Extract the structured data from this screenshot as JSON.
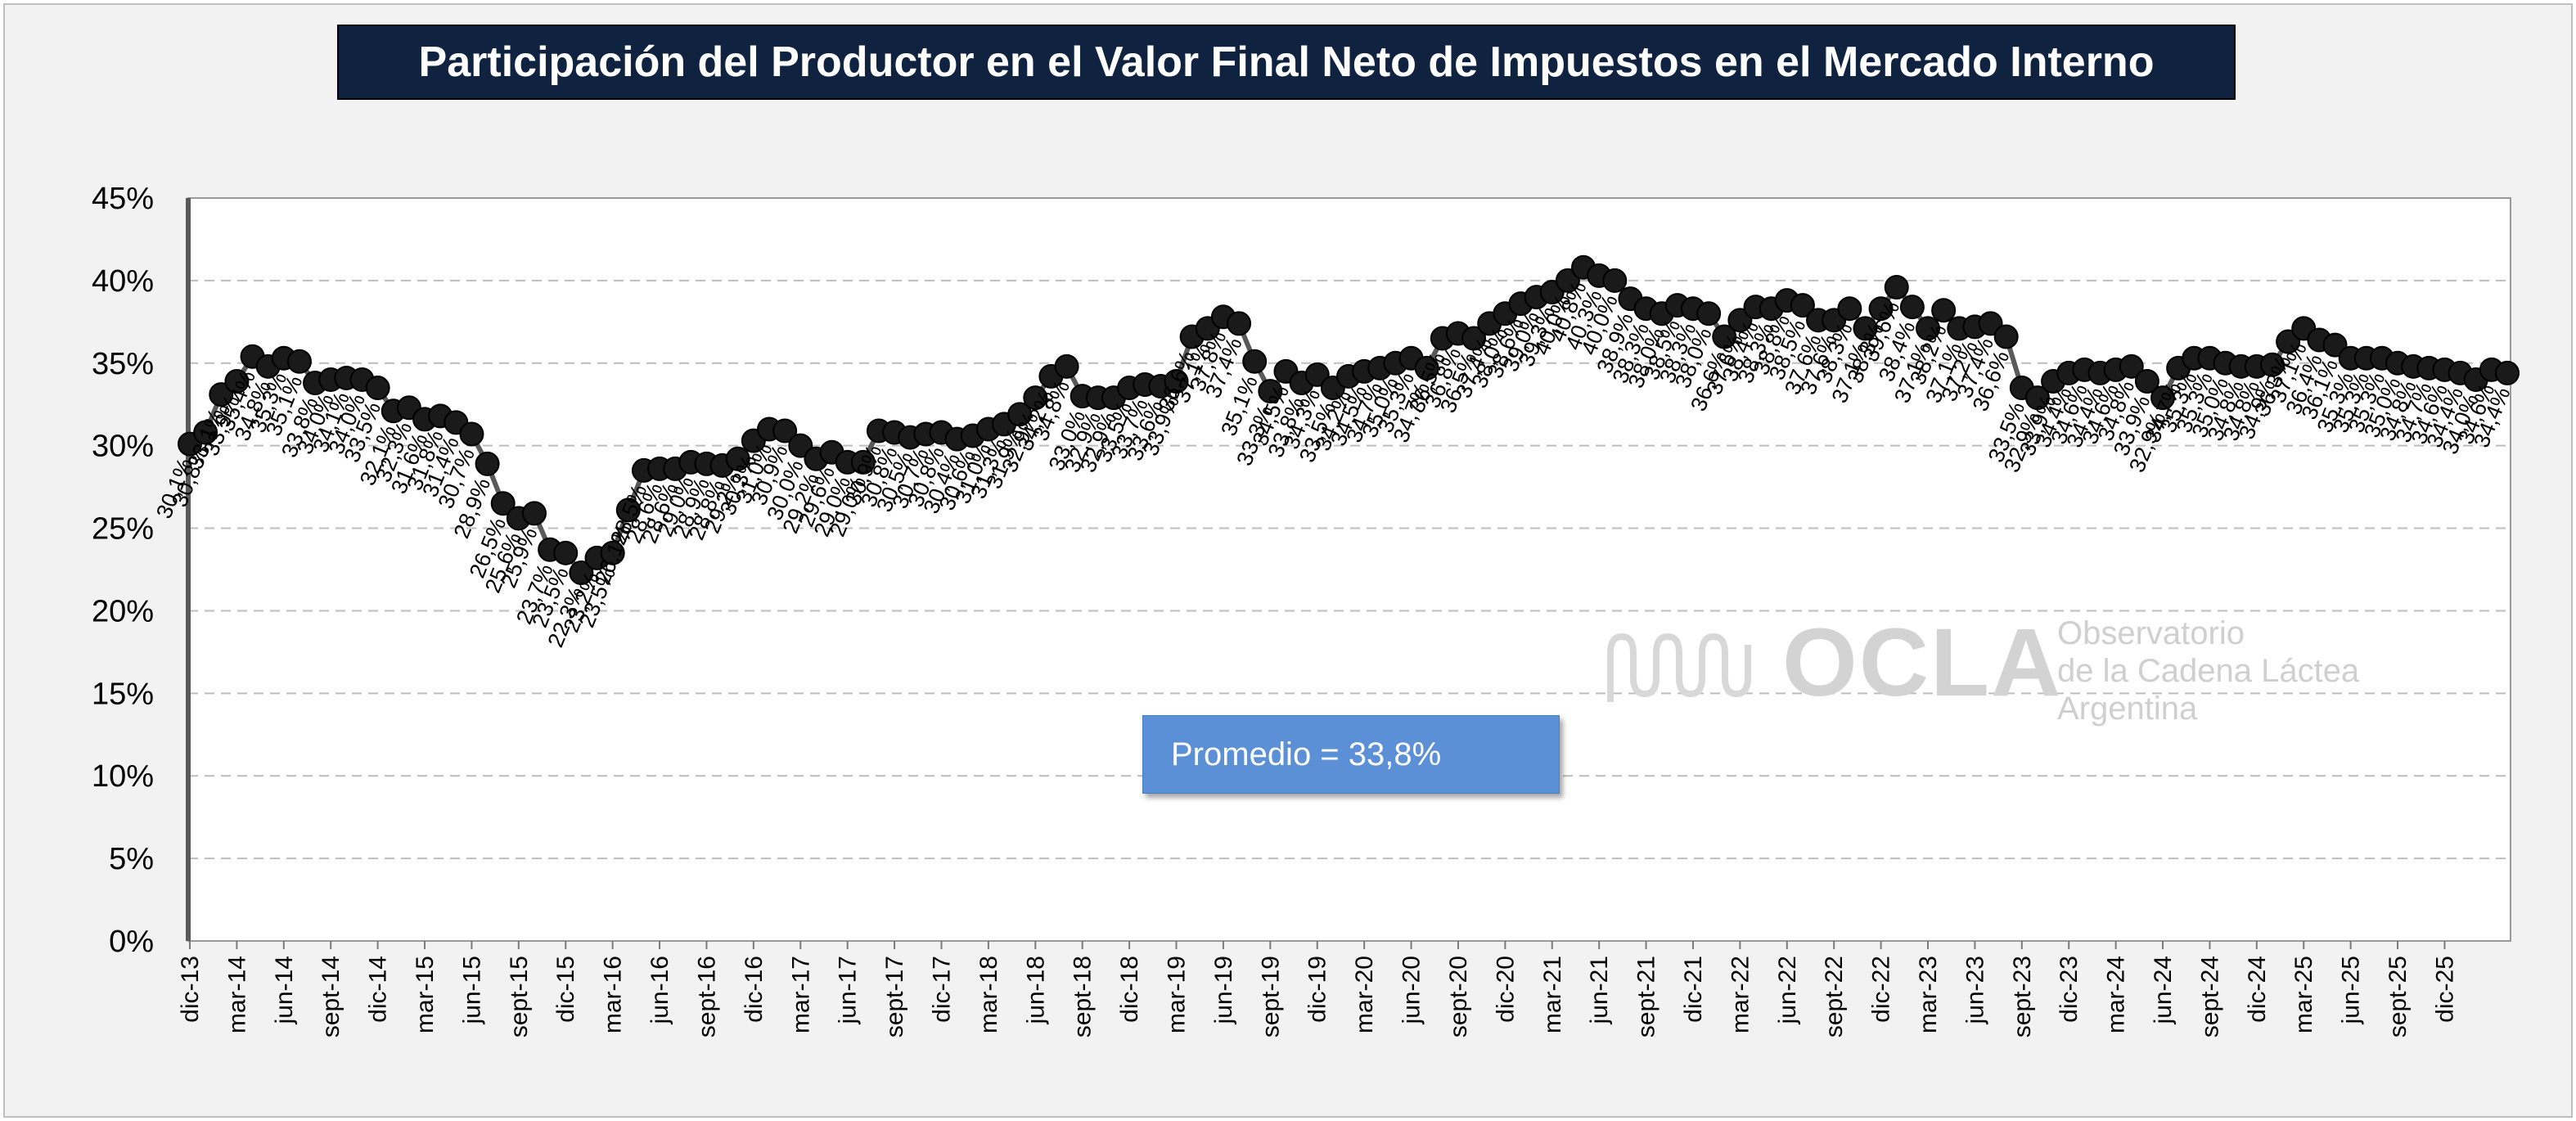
{
  "title": "Participación del Productor en el Valor Final Neto de Impuestos en el Mercado Interno",
  "average_label": "Promedio = 33,8%",
  "logo": {
    "name": "OCLA",
    "line1": "Observatorio",
    "line2": "de la Cadena Láctea",
    "line3": "Argentina"
  },
  "colors": {
    "frame_bg": "#f2f2f2",
    "plot_bg": "#ffffff",
    "title_bg": "#0f2341",
    "average_box": "#5b8fd6",
    "line": "#595959",
    "marker": "#1a1a1a"
  },
  "chart_data": {
    "type": "line",
    "title": "Participación del Productor en el Valor Final Neto de Impuestos en el Mercado Interno",
    "xlabel": "",
    "ylabel": "",
    "ylim": [
      0,
      45
    ],
    "y_ticks": [
      "0%",
      "5%",
      "10%",
      "15%",
      "20%",
      "25%",
      "30%",
      "35%",
      "40%",
      "45%"
    ],
    "grid": true,
    "legend": "none",
    "x_tick_labels": [
      "dic-13",
      "mar-14",
      "jun-14",
      "sept-14",
      "dic-14",
      "mar-15",
      "jun-15",
      "sept-15",
      "dic-15",
      "mar-16",
      "jun-16",
      "sept-16",
      "dic-16",
      "mar-17",
      "jun-17",
      "sept-17",
      "dic-17",
      "mar-18",
      "jun-18",
      "sept-18",
      "dic-18",
      "mar-19",
      "jun-19",
      "sept-19",
      "dic-19",
      "mar-20",
      "jun-20",
      "sept-20",
      "dic-20",
      "mar-21",
      "jun-21",
      "sept-21",
      "dic-21",
      "mar-22",
      "jun-22",
      "sept-22",
      "dic-22",
      "mar-23",
      "jun-23",
      "sept-23",
      "dic-23",
      "mar-24",
      "jun-24",
      "sept-24",
      "dic-24",
      "mar-25",
      "jun-25",
      "sept-25",
      "dic-25"
    ],
    "series": [
      {
        "values": [
          30.1,
          30.8,
          33.1,
          33.9,
          35.4,
          34.8,
          35.3,
          35.1,
          33.8,
          34.0,
          34.1,
          34.0,
          33.5,
          32.1,
          32.3,
          31.6,
          31.8,
          31.4,
          30.7,
          28.9,
          26.5,
          25.6,
          25.9,
          23.7,
          23.5,
          22.3,
          23.2,
          23.5,
          26.1,
          28.5,
          28.6,
          28.6,
          29.0,
          28.9,
          28.8,
          29.2,
          30.3,
          31.0,
          30.9,
          30.0,
          29.2,
          29.6,
          29.0,
          29.0,
          30.9,
          30.8,
          30.5,
          30.7,
          30.8,
          30.4,
          30.6,
          31.0,
          31.3,
          31.9,
          32.9,
          34.2,
          34.8,
          33.0,
          32.9,
          32.9,
          33.5,
          33.7,
          33.6,
          33.9,
          36.6,
          37.1,
          37.8,
          37.4,
          35.1,
          33.3,
          34.5,
          33.8,
          34.3,
          33.5,
          34.2,
          34.5,
          34.7,
          35.0,
          35.3,
          34.7,
          36.5,
          36.8,
          36.5,
          37.4,
          38.0,
          38.6,
          39.0,
          39.3,
          40.0,
          40.8,
          40.3,
          40.0,
          38.9,
          38.3,
          38.0,
          38.5,
          38.3,
          38.0,
          36.6,
          37.6,
          38.4,
          38.3,
          38.8,
          38.5,
          37.6,
          37.6,
          38.3,
          37.1,
          38.3,
          39.6,
          38.4,
          37.1,
          38.2,
          37.1,
          37.2,
          37.4,
          36.6,
          33.5,
          32.9,
          33.9,
          34.4,
          34.6,
          34.4,
          34.6,
          34.8,
          33.9,
          32.9,
          34.7,
          35.3,
          35.3,
          35.0,
          34.8,
          34.8,
          34.9,
          36.3,
          37.1,
          36.4,
          36.1,
          35.3,
          35.3,
          35.3,
          35.0,
          34.8,
          34.7,
          34.6,
          34.4,
          34.0,
          34.6,
          34.4
        ],
        "labels": [
          "30,1%",
          "30,8%",
          "33,1%",
          "33,9%",
          "35,4%",
          "34,8%",
          "35,3%",
          "35,1%",
          "33,8%",
          "34,0%",
          "34,1%",
          "34,0%",
          "33,5%",
          "32,1%",
          "32,3%",
          "31,6%",
          "31,8%",
          "31,4%",
          "30,7%",
          "28,9%",
          "26,5%",
          "25,6%",
          "25,9%",
          "23,7%",
          "23,5%",
          "22,3%",
          "23,2%",
          "23,5%",
          "26,1%",
          "28,5%",
          "28,6%",
          "28,6%",
          "29,0%",
          "28,9%",
          "28,8%",
          "29,2%",
          "30,3%",
          "31,0%",
          "30,9%",
          "30,0%",
          "29,2%",
          "29,6%",
          "29,0%",
          "29,0%",
          "30,9%",
          "30,8%",
          "30,5%",
          "30,7%",
          "30,8%",
          "30,4%",
          "30,6%",
          "31,0%",
          "31,3%",
          "31,9%",
          "32,9%",
          "34,2%",
          "34,8%",
          "33,0%",
          "32,9%",
          "32,9%",
          "33,5%",
          "33,7%",
          "33,6%",
          "33,9%",
          "36,6%",
          "37,1%",
          "37,8%",
          "37,4%",
          "35,1%",
          "33,3%",
          "34,5%",
          "33,8%",
          "34,3%",
          "33,5%",
          "34,2%",
          "34,5%",
          "34,7%",
          "35,0%",
          "35,3%",
          "34,7%",
          "36,5%",
          "36,8%",
          "36,5%",
          "37,4%",
          "38,0%",
          "38,6%",
          "39,0%",
          "39,3%",
          "40,0%",
          "40,8%",
          "40,3%",
          "40,0%",
          "38,9%",
          "38,3%",
          "38,0%",
          "38,5%",
          "38,3%",
          "38,0%",
          "36,6%",
          "37,6%",
          "38,4%",
          "38,3%",
          "38,8%",
          "38,5%",
          "37,6%",
          "37,6%",
          "38,3%",
          "37,1%",
          "38,3%",
          "39,6%",
          "38,4%",
          "37,1%",
          "38,2%",
          "37,1%",
          "37,2%",
          "37,4%",
          "36,6%",
          "33,5%",
          "32,9%",
          "33,9%",
          "34,4%",
          "34,6%",
          "34,4%",
          "34,6%",
          "34,8%",
          "33,9%",
          "32,9%",
          "34,7%",
          "35,3%",
          "35,3%",
          "35,0%",
          "34,8%",
          "34,8%",
          "34,9%",
          "36,3%",
          "37,1%",
          "36,4%",
          "36,1%",
          "35,3%",
          "35,3%",
          "35,3%",
          "35,0%",
          "34,8%",
          "34,7%",
          "34,6%",
          "34,4%",
          "34,0%",
          "34,6%",
          "34,4%"
        ]
      }
    ],
    "average": 33.8
  }
}
